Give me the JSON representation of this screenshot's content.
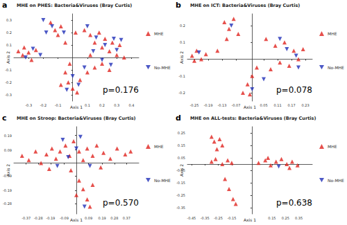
{
  "chart_data": [
    {
      "type": "scatter",
      "panel": "a",
      "title": "MHE on PHES: Bacteria&Viruses (Bray Curtis)",
      "xlabel": "Axis 1",
      "ylabel": "Axis 2",
      "annotation": "p=0.176",
      "legend": "right",
      "xlim": [
        -0.4,
        0.45
      ],
      "xticks": [
        -0.3,
        -0.2,
        -0.1,
        0.1,
        0.2,
        0.3,
        0.4
      ],
      "ylim": [
        -0.35,
        0.35
      ],
      "yticks": [
        -0.3,
        -0.2,
        -0.1,
        0.1,
        0.2,
        0.3
      ],
      "series": [
        {
          "name": "MHE",
          "color": "#e0241f",
          "marker": "triangle-up",
          "x": [
            -0.37,
            -0.34,
            -0.33,
            -0.3,
            -0.28,
            -0.25,
            -0.15,
            -0.12,
            -0.1,
            -0.08,
            -0.05,
            0.02,
            0.08,
            0.12,
            0.15,
            0.18,
            0.2,
            0.22,
            0.25,
            0.27,
            0.3,
            0.32,
            0.2,
            0.15,
            0.25,
            0.1,
            -0.02,
            -0.05,
            -0.03,
            0.0,
            0.05,
            0.03,
            -0.08,
            0.12,
            0.35
          ],
          "y": [
            0.05,
            0.02,
            0.08,
            0.04,
            -0.02,
            0.06,
            0.28,
            0.22,
            0.18,
            0.25,
            0.12,
            0.2,
            0.22,
            0.18,
            0.12,
            0.2,
            0.08,
            0.15,
            0.05,
            0.12,
            0.02,
            0.1,
            -0.05,
            -0.08,
            -0.1,
            -0.12,
            -0.05,
            -0.12,
            -0.2,
            -0.25,
            -0.18,
            -0.28,
            -0.22,
            0.02,
            0.0
          ]
        },
        {
          "name": "No-MHE",
          "color": "#2030b8",
          "marker": "triangle-down",
          "x": [
            -0.32,
            -0.27,
            -0.2,
            -0.14,
            -0.06,
            -0.18,
            0.1,
            0.16,
            0.22,
            0.28,
            0.3,
            0.14,
            0.2,
            0.26,
            0.08,
            0.0,
            -0.04,
            0.04,
            0.33,
            -0.22
          ],
          "y": [
            0.0,
            0.07,
            0.3,
            0.25,
            0.2,
            0.2,
            0.25,
            0.16,
            0.1,
            0.15,
            0.06,
            0.05,
            -0.02,
            -0.06,
            -0.08,
            -0.15,
            -0.26,
            -0.22,
            0.14,
            0.02
          ]
        }
      ]
    },
    {
      "type": "scatter",
      "panel": "b",
      "title": "MHE on ICT: Bacteria&Viruses (Bray Curtis)",
      "xlabel": "Axis 1",
      "ylabel": "Axis 2",
      "annotation": "p=0.078",
      "legend": "right",
      "xlim": [
        -0.28,
        0.26
      ],
      "xticks": [
        -0.25,
        -0.19,
        -0.13,
        -0.07,
        0.05,
        0.11,
        0.17,
        0.23
      ],
      "ylim": [
        -0.25,
        0.27
      ],
      "yticks": [
        -0.2,
        -0.1,
        0.1,
        0.2
      ],
      "series": [
        {
          "name": "MHE",
          "color": "#e0241f",
          "marker": "triangle-up",
          "x": [
            -0.26,
            -0.24,
            -0.22,
            -0.2,
            -0.25,
            -0.12,
            -0.1,
            -0.08,
            -0.06,
            -0.11,
            0.06,
            0.1,
            0.14,
            0.18,
            0.2,
            0.16,
            0.12,
            0.22,
            0.08,
            0.0,
            -0.02,
            -0.01,
            -0.04,
            0.02,
            -0.15
          ],
          "y": [
            0.02,
            0.05,
            0.0,
            0.03,
            -0.01,
            0.22,
            0.18,
            0.24,
            0.15,
            0.12,
            0.12,
            0.08,
            0.1,
            0.05,
            0.0,
            -0.04,
            -0.02,
            0.06,
            -0.06,
            -0.1,
            -0.15,
            -0.21,
            -0.2,
            -0.05,
            0.05
          ]
        },
        {
          "name": "No-MHE",
          "color": "#2030b8",
          "marker": "triangle-down",
          "x": [
            -0.23,
            -0.09,
            0.15,
            0.19,
            0.12,
            0.2,
            0.0,
            0.05
          ],
          "y": [
            0.04,
            0.2,
            0.06,
            0.02,
            0.12,
            -0.05,
            -0.18,
            -0.12
          ]
        }
      ]
    },
    {
      "type": "scatter",
      "panel": "c",
      "title": "MHE on Stroop: Bacteria&Viruses (Bray Curtis)",
      "xlabel": "Axis 1",
      "ylabel": "Axis 2",
      "annotation": "p=0.570",
      "legend": "right",
      "xlim": [
        -0.46,
        0.46
      ],
      "xticks": [
        -0.37,
        -0.28,
        -0.19,
        -0.09,
        0.09,
        0.19,
        0.28,
        0.37
      ],
      "ylim": [
        -0.35,
        0.25
      ],
      "yticks": [
        -0.28,
        -0.19,
        -0.09,
        0.09,
        0.19
      ],
      "series": [
        {
          "name": "MHE",
          "color": "#e0241f",
          "marker": "triangle-up",
          "x": [
            -0.4,
            -0.35,
            -0.3,
            -0.26,
            -0.22,
            -0.18,
            -0.15,
            -0.12,
            -0.08,
            -0.05,
            -0.02,
            0.02,
            0.05,
            0.08,
            0.12,
            0.15,
            0.2,
            0.25,
            0.3,
            0.36,
            0.4,
            0.02,
            0.05,
            0.08,
            0.1,
            0.0,
            0.12,
            -0.04,
            0.18,
            -0.2
          ],
          "y": [
            0.05,
            0.02,
            0.08,
            0.0,
            0.06,
            0.1,
            0.03,
            0.08,
            0.12,
            0.05,
            0.15,
            0.08,
            0.02,
            0.1,
            0.05,
            0.12,
            0.07,
            0.03,
            0.1,
            0.06,
            0.08,
            -0.12,
            -0.18,
            -0.25,
            -0.3,
            -0.22,
            -0.15,
            -0.05,
            -0.03,
            -0.04
          ]
        },
        {
          "name": "No-MHE",
          "color": "#2030b8",
          "marker": "triangle-down",
          "x": [
            -0.1,
            -0.06,
            0.0,
            0.03,
            0.1,
            -0.14,
            0.06
          ],
          "y": [
            0.16,
            0.04,
            0.1,
            0.18,
            -0.02,
            -0.02,
            -0.3
          ]
        }
      ]
    },
    {
      "type": "scatter",
      "panel": "d",
      "title": "MHE on ALL-tests: Bacteria&Viruses (Bray Curtis)",
      "xlabel": "Axis 1",
      "ylabel": "Axis 2",
      "annotation": "p=0.638",
      "legend": "right",
      "xlim": [
        -0.48,
        0.45
      ],
      "xticks": [
        -0.45,
        -0.35,
        -0.25,
        -0.15,
        0.15,
        0.25,
        0.35
      ],
      "ylim": [
        -0.4,
        0.3
      ],
      "yticks": [
        -0.35,
        -0.25,
        -0.15,
        -0.05,
        0.05,
        0.15,
        0.25
      ],
      "series": [
        {
          "name": "MHE",
          "color": "#e0241f",
          "marker": "triangle-up",
          "x": [
            -0.3,
            -0.28,
            -0.26,
            -0.24,
            -0.22,
            -0.3,
            -0.27,
            -0.22,
            -0.18,
            -0.15,
            -0.2,
            -0.17,
            -0.14,
            -0.12,
            0.05,
            0.1,
            0.14,
            0.18,
            0.22,
            0.26,
            0.3,
            0.34,
            0.12,
            0.28
          ],
          "y": [
            0.22,
            0.18,
            0.12,
            0.2,
            0.15,
            0.02,
            0.04,
            0.0,
            0.03,
            0.01,
            -0.12,
            -0.2,
            -0.28,
            -0.32,
            0.01,
            0.03,
            -0.01,
            0.02,
            0.04,
            0.0,
            0.02,
            -0.01,
            0.05,
            -0.03
          ]
        },
        {
          "name": "No-MHE",
          "color": "#2030b8",
          "marker": "triangle-down",
          "x": [
            0.2
          ],
          "y": [
            -0.02
          ]
        }
      ]
    }
  ]
}
